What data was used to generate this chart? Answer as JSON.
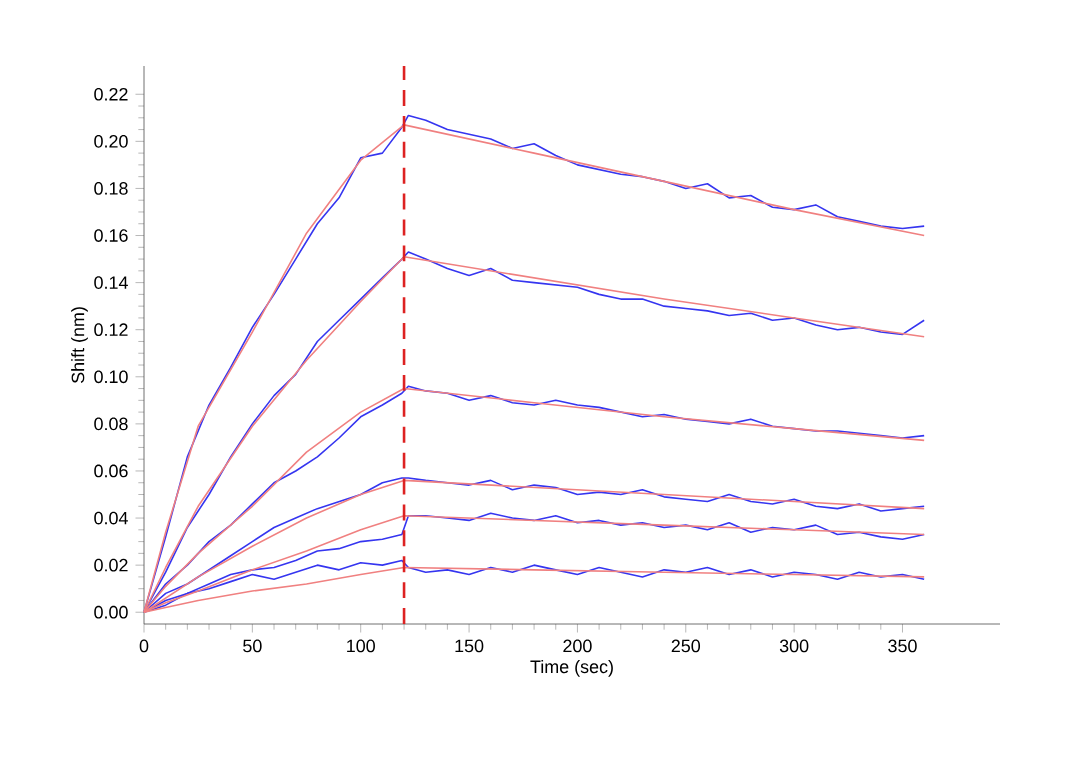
{
  "chart_data": {
    "type": "line",
    "xlabel": "Time (sec)",
    "ylabel": "Shift (nm)",
    "xlim": [
      0,
      395
    ],
    "ylim": [
      -0.005,
      0.232
    ],
    "xticks": [
      0,
      50,
      100,
      150,
      200,
      250,
      300,
      350
    ],
    "yticks": [
      {
        "value": 0,
        "label": "0.00"
      },
      {
        "value": 0.02,
        "label": "0.02"
      },
      {
        "value": 0.04,
        "label": "0.04"
      },
      {
        "value": 0.06,
        "label": "0.06"
      },
      {
        "value": 0.08,
        "label": "0.08"
      },
      {
        "value": 0.1,
        "label": "0.10"
      },
      {
        "value": 0.12,
        "label": "0.12"
      },
      {
        "value": 0.14,
        "label": "0.14"
      },
      {
        "value": 0.16,
        "label": "0.16"
      },
      {
        "value": 0.18,
        "label": "0.18"
      },
      {
        "value": 0.2,
        "label": "0.20"
      },
      {
        "value": 0.22,
        "label": "0.22"
      }
    ],
    "grid": false,
    "marker": "none",
    "line_style": "solid",
    "x": [
      0,
      10,
      20,
      30,
      40,
      50,
      60,
      70,
      80,
      90,
      100,
      110,
      119,
      122,
      130,
      140,
      150,
      160,
      170,
      180,
      190,
      200,
      210,
      220,
      230,
      240,
      250,
      260,
      270,
      280,
      290,
      300,
      310,
      320,
      330,
      340,
      350,
      360
    ],
    "ref_lines": [
      {
        "axis": "x",
        "value": 120,
        "color": "#dd2222",
        "line_style": "dashed"
      }
    ],
    "series": [
      {
        "color": "#3535f0",
        "values": [
          0,
          0.032,
          0.066,
          0.088,
          0.104,
          0.121,
          0.135,
          0.15,
          0.165,
          0.176,
          0.193,
          0.195,
          0.206,
          0.211,
          0.209,
          0.205,
          0.203,
          0.201,
          0.197,
          0.199,
          0.194,
          0.19,
          0.188,
          0.186,
          0.185,
          0.183,
          0.18,
          0.182,
          0.176,
          0.177,
          0.172,
          0.171,
          0.173,
          0.168,
          0.166,
          0.164,
          0.163,
          0.164
        ]
      },
      {
        "color": "#3535f0",
        "values": [
          0,
          0.017,
          0.036,
          0.05,
          0.066,
          0.08,
          0.092,
          0.101,
          0.115,
          0.124,
          0.133,
          0.142,
          0.15,
          0.153,
          0.15,
          0.146,
          0.143,
          0.146,
          0.141,
          0.14,
          0.139,
          0.138,
          0.135,
          0.133,
          0.133,
          0.13,
          0.129,
          0.128,
          0.126,
          0.127,
          0.124,
          0.125,
          0.122,
          0.12,
          0.121,
          0.119,
          0.118,
          0.124
        ]
      },
      {
        "color": "#3535f0",
        "values": [
          0,
          0.012,
          0.02,
          0.03,
          0.037,
          0.046,
          0.055,
          0.06,
          0.066,
          0.074,
          0.083,
          0.088,
          0.093,
          0.096,
          0.094,
          0.093,
          0.09,
          0.092,
          0.089,
          0.088,
          0.09,
          0.088,
          0.087,
          0.085,
          0.083,
          0.084,
          0.082,
          0.081,
          0.08,
          0.082,
          0.079,
          0.078,
          0.077,
          0.077,
          0.076,
          0.075,
          0.074,
          0.075
        ]
      },
      {
        "color": "#3535f0",
        "values": [
          0,
          0.008,
          0.012,
          0.018,
          0.024,
          0.03,
          0.036,
          0.04,
          0.044,
          0.047,
          0.05,
          0.055,
          0.057,
          0.057,
          0.056,
          0.055,
          0.054,
          0.056,
          0.052,
          0.054,
          0.053,
          0.05,
          0.051,
          0.05,
          0.052,
          0.049,
          0.048,
          0.047,
          0.05,
          0.047,
          0.046,
          0.048,
          0.045,
          0.044,
          0.046,
          0.043,
          0.044,
          0.045
        ]
      },
      {
        "color": "#3535f0",
        "values": [
          0,
          0.005,
          0.008,
          0.012,
          0.016,
          0.018,
          0.019,
          0.022,
          0.026,
          0.027,
          0.03,
          0.031,
          0.033,
          0.041,
          0.041,
          0.04,
          0.039,
          0.042,
          0.04,
          0.039,
          0.041,
          0.038,
          0.039,
          0.037,
          0.038,
          0.036,
          0.037,
          0.035,
          0.038,
          0.034,
          0.036,
          0.035,
          0.037,
          0.033,
          0.034,
          0.032,
          0.031,
          0.033
        ]
      },
      {
        "color": "#3535f0",
        "values": [
          0,
          0.003,
          0.008,
          0.01,
          0.013,
          0.016,
          0.014,
          0.017,
          0.02,
          0.018,
          0.021,
          0.02,
          0.022,
          0.019,
          0.017,
          0.018,
          0.016,
          0.019,
          0.017,
          0.02,
          0.018,
          0.016,
          0.019,
          0.017,
          0.015,
          0.018,
          0.017,
          0.019,
          0.016,
          0.018,
          0.015,
          0.017,
          0.016,
          0.014,
          0.017,
          0.015,
          0.016,
          0.014
        ]
      },
      {
        "color": "#f08080",
        "x": [
          0,
          10,
          25,
          50,
          75,
          100,
          120,
          180,
          240,
          300,
          360
        ],
        "values": [
          0,
          0.034,
          0.079,
          0.119,
          0.161,
          0.192,
          0.207,
          0.195,
          0.183,
          0.171,
          0.16
        ]
      },
      {
        "color": "#f08080",
        "x": [
          0,
          10,
          25,
          50,
          75,
          100,
          120,
          180,
          240,
          300,
          360
        ],
        "values": [
          0,
          0.019,
          0.045,
          0.079,
          0.107,
          0.132,
          0.151,
          0.142,
          0.133,
          0.125,
          0.117
        ]
      },
      {
        "color": "#f08080",
        "x": [
          0,
          10,
          25,
          50,
          75,
          100,
          120,
          180,
          240,
          300,
          360
        ],
        "values": [
          0,
          0.011,
          0.025,
          0.045,
          0.068,
          0.085,
          0.095,
          0.089,
          0.083,
          0.078,
          0.073
        ]
      },
      {
        "color": "#f08080",
        "x": [
          0,
          10,
          25,
          50,
          75,
          100,
          120,
          180,
          240,
          300,
          360
        ],
        "values": [
          0,
          0.006,
          0.015,
          0.028,
          0.04,
          0.05,
          0.056,
          0.053,
          0.05,
          0.047,
          0.044
        ]
      },
      {
        "color": "#f08080",
        "x": [
          0,
          10,
          25,
          50,
          75,
          100,
          120,
          180,
          240,
          300,
          360
        ],
        "values": [
          0,
          0.004,
          0.009,
          0.018,
          0.026,
          0.035,
          0.041,
          0.039,
          0.037,
          0.035,
          0.033
        ]
      },
      {
        "color": "#f08080",
        "x": [
          0,
          10,
          25,
          50,
          75,
          100,
          120,
          180,
          240,
          300,
          360
        ],
        "values": [
          0,
          0.002,
          0.005,
          0.009,
          0.012,
          0.016,
          0.019,
          0.018,
          0.017,
          0.016,
          0.015
        ]
      }
    ]
  }
}
